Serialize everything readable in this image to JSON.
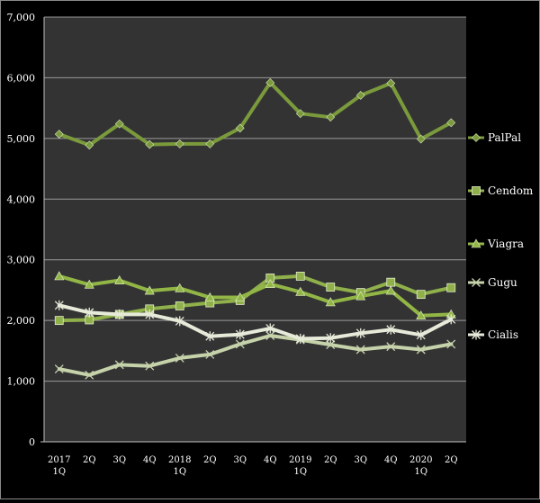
{
  "chart_data": {
    "type": "line",
    "title": "",
    "xlabel": "",
    "ylabel": "",
    "ylim": [
      0,
      7000
    ],
    "yticks": [
      0,
      1000,
      2000,
      3000,
      4000,
      5000,
      6000,
      7000
    ],
    "ytick_labels": [
      "0",
      "1,000",
      "2,000",
      "3,000",
      "4,000",
      "5,000",
      "6,000",
      "7,000"
    ],
    "grid": true,
    "legend_position": "right",
    "categories": [
      [
        "2017",
        "1Q"
      ],
      [
        "2Q"
      ],
      [
        "3Q"
      ],
      [
        "4Q"
      ],
      [
        "2018",
        "1Q"
      ],
      [
        "2Q"
      ],
      [
        "3Q"
      ],
      [
        "4Q"
      ],
      [
        "2019",
        "1Q"
      ],
      [
        "2Q"
      ],
      [
        "3Q"
      ],
      [
        "4Q"
      ],
      [
        "2020",
        "1Q"
      ],
      [
        "2Q"
      ]
    ],
    "series": [
      {
        "name": "PalPal",
        "marker": "diamond",
        "color": "#7a9a3c",
        "values": [
          5070,
          4890,
          5240,
          4900,
          4910,
          4910,
          5170,
          5920,
          5410,
          5350,
          5710,
          5910,
          4990,
          5260
        ]
      },
      {
        "name": "Cendom",
        "marker": "square",
        "color": "#8fb04a",
        "values": [
          2000,
          2010,
          2100,
          2190,
          2240,
          2290,
          2330,
          2700,
          2730,
          2550,
          2460,
          2630,
          2430,
          2540
        ]
      },
      {
        "name": "Viagra",
        "marker": "triangle",
        "color": "#92b646",
        "values": [
          2730,
          2590,
          2660,
          2490,
          2530,
          2380,
          2380,
          2600,
          2470,
          2300,
          2400,
          2490,
          2080,
          2100
        ]
      },
      {
        "name": "Gugu",
        "marker": "x",
        "color": "#c5d2aa",
        "values": [
          1200,
          1100,
          1270,
          1250,
          1380,
          1440,
          1610,
          1750,
          1680,
          1600,
          1520,
          1570,
          1520,
          1610
        ]
      },
      {
        "name": "Cialis",
        "marker": "asterisk",
        "color": "#e6ead9",
        "values": [
          2250,
          2130,
          2100,
          2100,
          1990,
          1740,
          1770,
          1870,
          1700,
          1710,
          1790,
          1850,
          1760,
          2020
        ]
      }
    ]
  }
}
